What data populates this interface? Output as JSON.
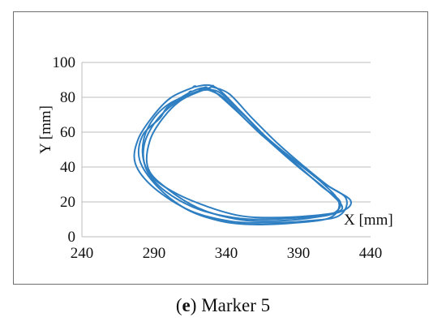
{
  "chart_data": {
    "type": "line",
    "title": "",
    "xlabel": "X [mm]",
    "ylabel": "Y [mm]",
    "xlim": [
      240,
      440
    ],
    "ylim": [
      0,
      100
    ],
    "x_ticks": [
      "240",
      "290",
      "340",
      "390",
      "440"
    ],
    "y_ticks": [
      "0",
      "20",
      "40",
      "60",
      "80",
      "100"
    ],
    "grid": "horizontal",
    "legend": "none",
    "line_color": "#2e7ec2",
    "series": [
      {
        "x": [
          322,
          335,
          352,
          370,
          388,
          406,
          419,
          413,
          392,
          365,
          345,
          320,
          298,
          285,
          283,
          291,
          305,
          322
        ],
        "y": [
          84,
          83,
          70,
          55,
          42,
          29,
          20,
          13,
          11,
          10,
          11,
          16,
          26,
          38,
          52,
          66,
          77,
          84
        ]
      },
      {
        "x": [
          318,
          332,
          350,
          368,
          387,
          407,
          423,
          418,
          395,
          368,
          342,
          315,
          290,
          277,
          279,
          290,
          302,
          318
        ],
        "y": [
          86,
          86,
          72,
          57,
          44,
          31,
          22,
          12,
          9,
          8,
          9,
          15,
          28,
          42,
          56,
          70,
          80,
          86
        ]
      },
      {
        "x": [
          325,
          338,
          355,
          372,
          390,
          408,
          420,
          416,
          398,
          372,
          350,
          328,
          305,
          288,
          282,
          286,
          300,
          325
        ],
        "y": [
          85,
          80,
          66,
          53,
          40,
          28,
          18,
          14,
          12,
          11,
          12,
          17,
          25,
          35,
          48,
          63,
          76,
          85
        ]
      },
      {
        "x": [
          330,
          342,
          358,
          375,
          393,
          411,
          426,
          421,
          400,
          372,
          348,
          322,
          300,
          286,
          287,
          297,
          310,
          330
        ],
        "y": [
          86,
          82,
          68,
          54,
          41,
          29,
          21,
          15,
          11,
          9,
          10,
          16,
          27,
          39,
          55,
          69,
          79,
          86
        ]
      },
      {
        "x": [
          315,
          328,
          346,
          365,
          385,
          405,
          418,
          412,
          388,
          360,
          336,
          312,
          292,
          280,
          282,
          294,
          300,
          315
        ],
        "y": [
          83,
          85,
          73,
          58,
          45,
          32,
          20,
          11,
          8,
          7,
          9,
          16,
          29,
          44,
          58,
          68,
          75,
          83
        ]
      }
    ]
  },
  "caption": {
    "letter": "e",
    "text": " Marker 5"
  }
}
